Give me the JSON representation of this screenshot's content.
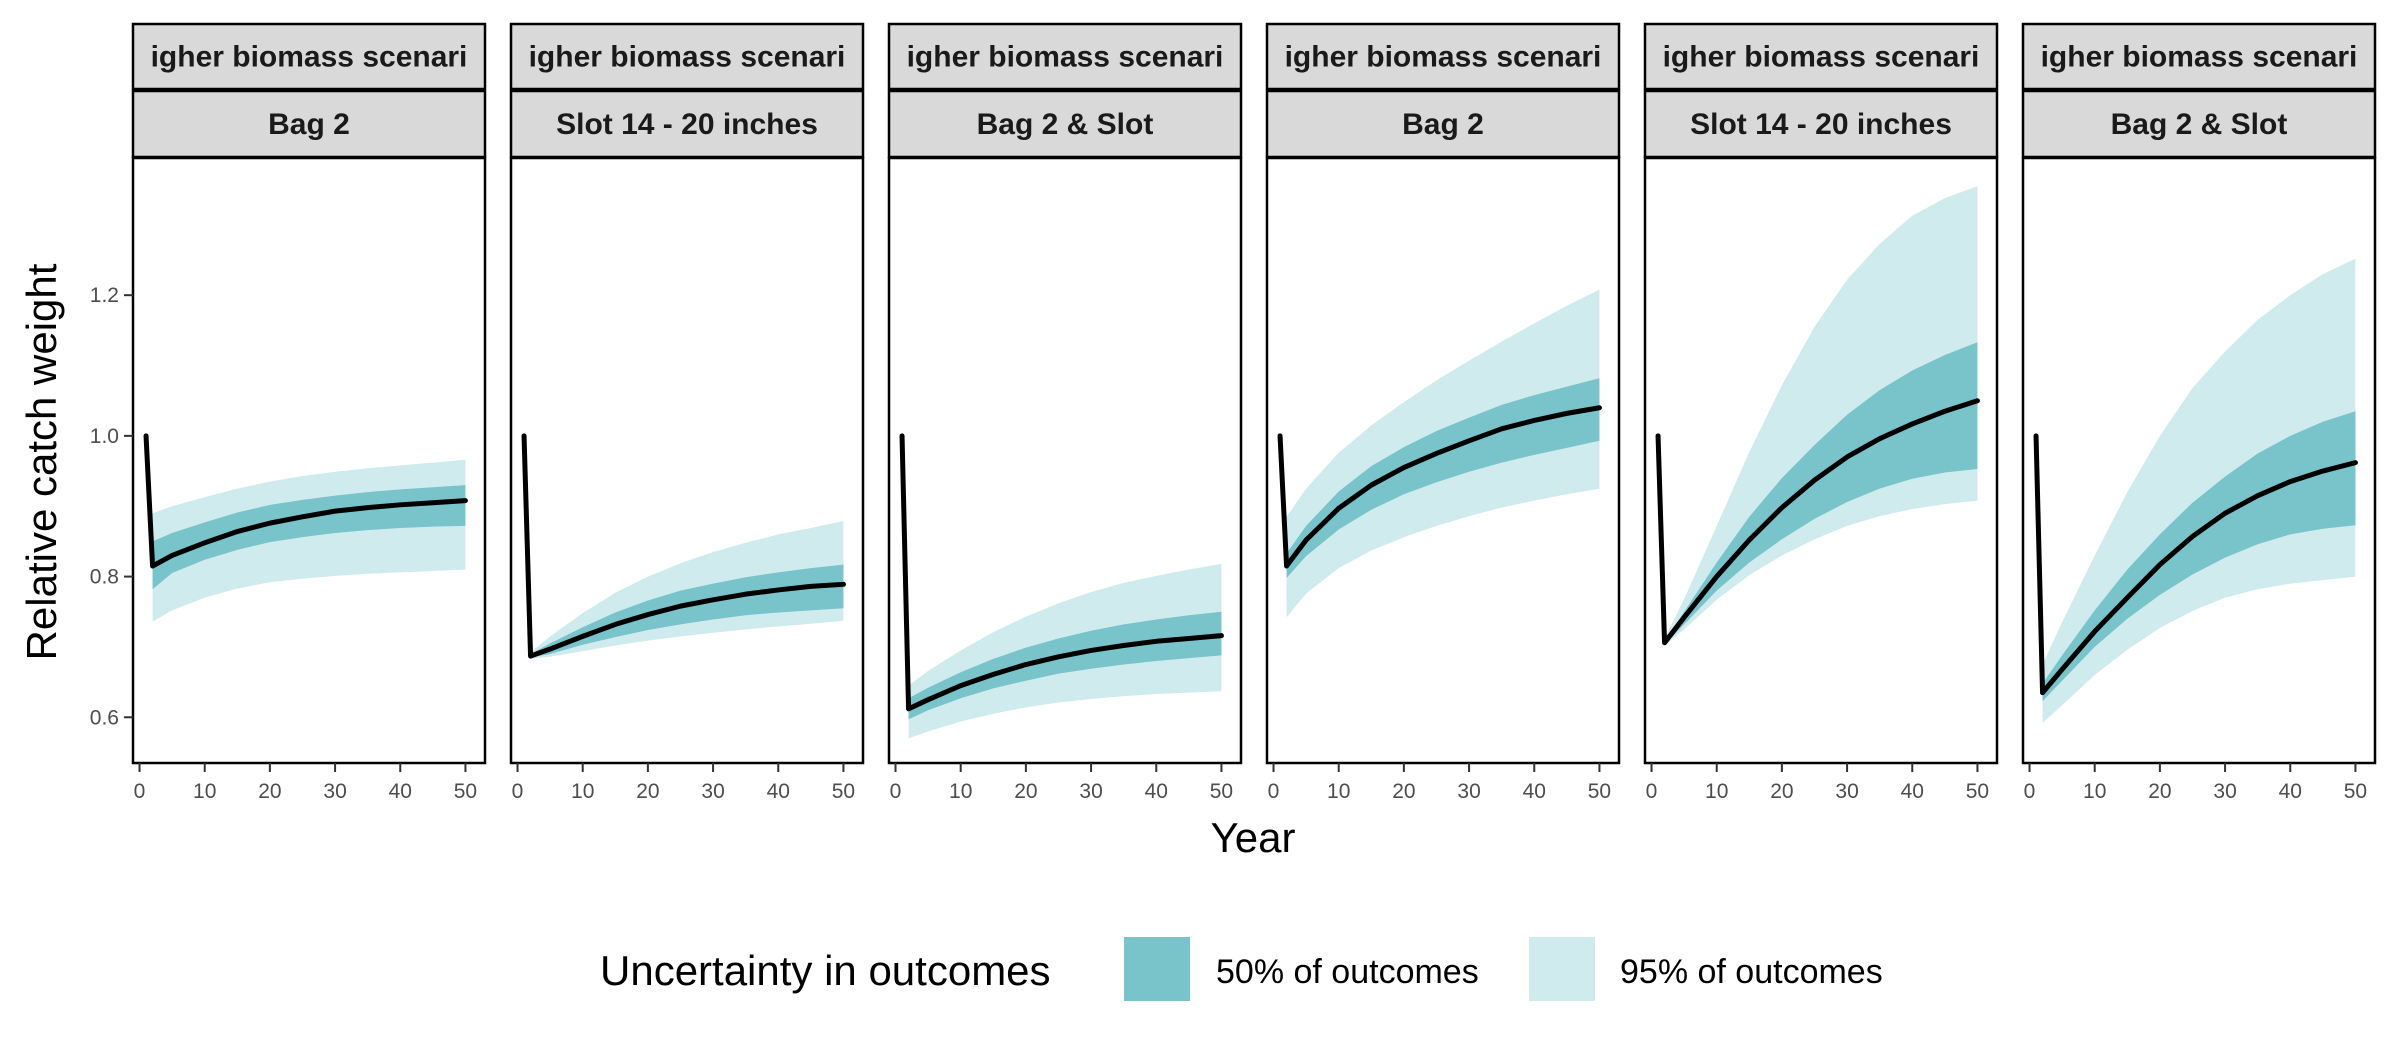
{
  "chart_data": {
    "type": "area",
    "xlabel": "Year",
    "ylabel": "Relative catch weight",
    "xlim": [
      -1,
      53
    ],
    "ylim": [
      0.535,
      1.395
    ],
    "x_ticks": [
      0,
      10,
      20,
      30,
      40,
      50
    ],
    "y_ticks": [
      0.6,
      0.8,
      1.0,
      1.2
    ],
    "y_tick_labels": [
      "0.6",
      "0.8",
      "1.0",
      "1.2"
    ],
    "grid": false,
    "legend": {
      "title": "Uncertainty in outcomes",
      "placement": "bottom",
      "entries": [
        {
          "label": "50% of outcomes",
          "color": "#79c3cb"
        },
        {
          "label": "95% of outcomes",
          "color": "#cfebee"
        }
      ]
    },
    "colors": {
      "band50": "#79c3cb",
      "band95": "#cfebee",
      "line": "#000000",
      "strip_fill": "#d9d9d9"
    },
    "panels": [
      {
        "strip_top": "igher biomass scenari",
        "strip_bottom": "Bag 2",
        "x": [
          1,
          2,
          5,
          10,
          15,
          20,
          25,
          30,
          35,
          40,
          45,
          50
        ],
        "median": [
          1.0,
          0.815,
          0.83,
          0.848,
          0.864,
          0.876,
          0.885,
          0.893,
          0.898,
          0.902,
          0.905,
          0.908
        ],
        "band50": {
          "x": [
            2,
            5,
            10,
            15,
            20,
            25,
            30,
            35,
            40,
            45,
            50
          ],
          "low": [
            0.782,
            0.805,
            0.824,
            0.838,
            0.849,
            0.856,
            0.862,
            0.866,
            0.869,
            0.871,
            0.872
          ],
          "high": [
            0.85,
            0.862,
            0.877,
            0.891,
            0.902,
            0.909,
            0.915,
            0.92,
            0.924,
            0.927,
            0.93
          ]
        },
        "band95": {
          "x": [
            2,
            5,
            10,
            15,
            20,
            25,
            30,
            35,
            40,
            45,
            50
          ],
          "low": [
            0.736,
            0.752,
            0.77,
            0.783,
            0.792,
            0.797,
            0.801,
            0.804,
            0.806,
            0.808,
            0.81
          ],
          "high": [
            0.89,
            0.9,
            0.913,
            0.925,
            0.935,
            0.943,
            0.949,
            0.954,
            0.958,
            0.962,
            0.966
          ]
        }
      },
      {
        "strip_top": "igher biomass scenari",
        "strip_bottom": "Slot 14 - 20 inches",
        "x": [
          1,
          2,
          5,
          10,
          15,
          20,
          25,
          30,
          35,
          40,
          45,
          50
        ],
        "median": [
          1.0,
          0.687,
          0.697,
          0.715,
          0.732,
          0.746,
          0.758,
          0.767,
          0.775,
          0.781,
          0.786,
          0.789
        ],
        "band50": {
          "x": [
            2,
            5,
            10,
            15,
            20,
            25,
            30,
            35,
            40,
            45,
            50
          ],
          "low": [
            0.685,
            0.69,
            0.703,
            0.714,
            0.724,
            0.732,
            0.739,
            0.745,
            0.749,
            0.752,
            0.755
          ],
          "high": [
            0.69,
            0.705,
            0.728,
            0.749,
            0.766,
            0.78,
            0.79,
            0.799,
            0.806,
            0.812,
            0.817
          ]
        },
        "band95": {
          "x": [
            2,
            5,
            10,
            15,
            20,
            25,
            30,
            35,
            40,
            45,
            50
          ],
          "low": [
            0.683,
            0.686,
            0.694,
            0.702,
            0.709,
            0.715,
            0.72,
            0.725,
            0.729,
            0.733,
            0.737
          ],
          "high": [
            0.692,
            0.715,
            0.748,
            0.777,
            0.8,
            0.819,
            0.835,
            0.848,
            0.86,
            0.869,
            0.879
          ]
        }
      },
      {
        "strip_top": "igher biomass scenari",
        "strip_bottom": "Bag 2 & Slot",
        "x": [
          1,
          2,
          5,
          10,
          15,
          20,
          25,
          30,
          35,
          40,
          45,
          50
        ],
        "median": [
          1.0,
          0.612,
          0.625,
          0.645,
          0.661,
          0.675,
          0.686,
          0.695,
          0.702,
          0.708,
          0.712,
          0.716
        ],
        "band50": {
          "x": [
            2,
            5,
            10,
            15,
            20,
            25,
            30,
            35,
            40,
            45,
            50
          ],
          "low": [
            0.597,
            0.61,
            0.627,
            0.641,
            0.652,
            0.662,
            0.669,
            0.675,
            0.68,
            0.684,
            0.688
          ],
          "high": [
            0.627,
            0.642,
            0.664,
            0.683,
            0.699,
            0.712,
            0.723,
            0.732,
            0.739,
            0.745,
            0.75
          ]
        },
        "band95": {
          "x": [
            2,
            5,
            10,
            15,
            20,
            25,
            30,
            35,
            40,
            45,
            50
          ],
          "low": [
            0.57,
            0.58,
            0.594,
            0.605,
            0.614,
            0.621,
            0.626,
            0.63,
            0.633,
            0.635,
            0.637
          ],
          "high": [
            0.645,
            0.666,
            0.695,
            0.721,
            0.743,
            0.762,
            0.778,
            0.791,
            0.801,
            0.81,
            0.818
          ]
        }
      },
      {
        "strip_top": "igher biomass scenari",
        "strip_bottom": "Bag 2",
        "x": [
          1,
          2,
          5,
          10,
          15,
          20,
          25,
          30,
          35,
          40,
          45,
          50
        ],
        "median": [
          1.0,
          0.815,
          0.852,
          0.897,
          0.93,
          0.955,
          0.975,
          0.993,
          1.01,
          1.022,
          1.032,
          1.04
        ],
        "band50": {
          "x": [
            2,
            5,
            10,
            15,
            20,
            25,
            30,
            35,
            40,
            45,
            50
          ],
          "low": [
            0.798,
            0.829,
            0.867,
            0.895,
            0.917,
            0.934,
            0.949,
            0.962,
            0.973,
            0.983,
            0.993
          ],
          "high": [
            0.833,
            0.872,
            0.921,
            0.957,
            0.984,
            1.007,
            1.026,
            1.044,
            1.058,
            1.07,
            1.082
          ]
        },
        "band95": {
          "x": [
            2,
            5,
            10,
            15,
            20,
            25,
            30,
            35,
            40,
            45,
            50
          ],
          "low": [
            0.742,
            0.776,
            0.812,
            0.837,
            0.856,
            0.872,
            0.886,
            0.898,
            0.908,
            0.917,
            0.925
          ],
          "high": [
            0.885,
            0.925,
            0.976,
            1.015,
            1.048,
            1.079,
            1.107,
            1.134,
            1.16,
            1.185,
            1.208
          ]
        }
      },
      {
        "strip_top": "igher biomass scenari",
        "strip_bottom": "Slot 14 - 20 inches",
        "x": [
          1,
          2,
          5,
          10,
          15,
          20,
          25,
          30,
          35,
          40,
          45,
          50
        ],
        "median": [
          1.0,
          0.706,
          0.742,
          0.8,
          0.852,
          0.898,
          0.937,
          0.97,
          0.996,
          1.017,
          1.035,
          1.05
        ],
        "band50": {
          "x": [
            2,
            5,
            10,
            15,
            20,
            25,
            30,
            35,
            40,
            45,
            50
          ],
          "low": [
            0.703,
            0.732,
            0.78,
            0.82,
            0.853,
            0.882,
            0.906,
            0.925,
            0.939,
            0.948,
            0.953
          ],
          "high": [
            0.708,
            0.75,
            0.82,
            0.885,
            0.94,
            0.987,
            1.03,
            1.065,
            1.093,
            1.115,
            1.133
          ]
        },
        "band95": {
          "x": [
            2,
            5,
            10,
            15,
            20,
            25,
            30,
            35,
            40,
            45,
            50
          ],
          "low": [
            0.701,
            0.725,
            0.767,
            0.802,
            0.83,
            0.853,
            0.872,
            0.886,
            0.896,
            0.903,
            0.908
          ],
          "high": [
            0.712,
            0.768,
            0.872,
            0.977,
            1.072,
            1.155,
            1.222,
            1.273,
            1.313,
            1.338,
            1.355
          ]
        }
      },
      {
        "strip_top": "igher biomass scenari",
        "strip_bottom": "Bag 2 & Slot",
        "x": [
          1,
          2,
          5,
          10,
          15,
          20,
          25,
          30,
          35,
          40,
          45,
          50
        ],
        "median": [
          1.0,
          0.635,
          0.668,
          0.722,
          0.77,
          0.817,
          0.857,
          0.89,
          0.915,
          0.935,
          0.95,
          0.962
        ],
        "band50": {
          "x": [
            2,
            5,
            10,
            15,
            20,
            25,
            30,
            35,
            40,
            45,
            50
          ],
          "low": [
            0.623,
            0.652,
            0.7,
            0.74,
            0.774,
            0.803,
            0.827,
            0.846,
            0.86,
            0.868,
            0.873
          ],
          "high": [
            0.648,
            0.688,
            0.752,
            0.81,
            0.86,
            0.905,
            0.942,
            0.975,
            1.0,
            1.02,
            1.035
          ]
        },
        "band95": {
          "x": [
            2,
            5,
            10,
            15,
            20,
            25,
            30,
            35,
            40,
            45,
            50
          ],
          "low": [
            0.592,
            0.617,
            0.66,
            0.696,
            0.727,
            0.751,
            0.77,
            0.782,
            0.79,
            0.795,
            0.8
          ],
          "high": [
            0.675,
            0.735,
            0.83,
            0.92,
            1.0,
            1.068,
            1.12,
            1.165,
            1.2,
            1.23,
            1.252
          ]
        }
      }
    ]
  }
}
